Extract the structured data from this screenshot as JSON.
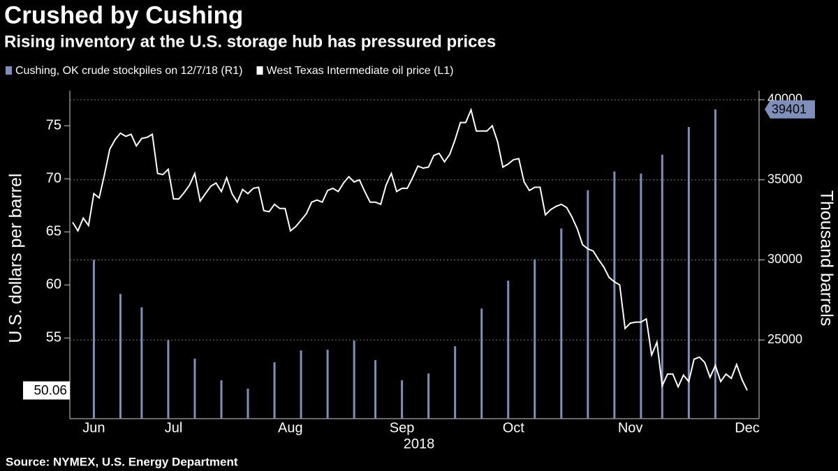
{
  "chart_data": {
    "type": "bar-line",
    "title": "Crushed by Cushing",
    "subtitle": "Rising inventory at the U.S. storage hub has pressured prices",
    "source": "Source: NYMEX, U.S. Energy Department",
    "xlabel": "2018",
    "ylabel": "U.S. dollars per barrel",
    "y2label": "Thousand barrels",
    "categories": [
      null,
      null,
      null,
      null,
      "Jun",
      null,
      null,
      null,
      null,
      null,
      null,
      null,
      null,
      null,
      null,
      null,
      null,
      null,
      null,
      "Jul",
      null,
      null,
      null,
      null,
      null,
      null,
      null,
      null,
      null,
      null,
      null,
      null,
      null,
      null,
      null,
      null,
      null,
      null,
      null,
      null,
      null,
      "Aug",
      null,
      null,
      null,
      null,
      null,
      null,
      null,
      null,
      null,
      null,
      null,
      null,
      null,
      null,
      null,
      null,
      null,
      null,
      null,
      null,
      "Sep",
      null,
      null,
      null,
      null,
      null,
      null,
      null,
      null,
      null,
      null,
      null,
      null,
      null,
      null,
      null,
      null,
      null,
      null,
      null,
      null,
      "Oct",
      null,
      null,
      null,
      null,
      null,
      null,
      null,
      null,
      null,
      null,
      null,
      null,
      null,
      null,
      null,
      null,
      null,
      null,
      null,
      null,
      null,
      "Nov",
      null,
      null,
      null,
      null,
      null,
      null,
      null,
      null,
      null,
      null,
      null,
      null,
      null,
      null,
      null,
      null,
      null,
      null,
      null,
      null,
      null,
      "Dec"
    ],
    "series": [
      {
        "name": "Cushing, OK crude stockpiles on 12/7/18 (R1)",
        "color": "#7f8fba",
        "kind": "bar",
        "axis": "y2",
        "values": [
          null,
          null,
          null,
          null,
          30000,
          null,
          null,
          null,
          null,
          27870,
          null,
          null,
          null,
          27040,
          null,
          null,
          null,
          null,
          25000,
          null,
          null,
          null,
          null,
          23830,
          null,
          null,
          null,
          null,
          22480,
          null,
          null,
          null,
          null,
          21960,
          null,
          null,
          null,
          null,
          23610,
          null,
          null,
          null,
          null,
          24350,
          null,
          null,
          null,
          null,
          24390,
          null,
          null,
          null,
          null,
          24960,
          null,
          null,
          null,
          23740,
          null,
          null,
          null,
          null,
          22480,
          null,
          null,
          null,
          null,
          22910,
          null,
          null,
          null,
          null,
          24610,
          null,
          null,
          null,
          null,
          26960,
          null,
          null,
          null,
          null,
          28700,
          null,
          null,
          null,
          null,
          30040,
          null,
          null,
          null,
          null,
          31960,
          null,
          null,
          null,
          null,
          34350,
          null,
          null,
          null,
          null,
          35520,
          null,
          null,
          null,
          null,
          35390,
          null,
          null,
          null,
          36570,
          null,
          null,
          null,
          null,
          38300,
          null,
          null,
          null,
          null,
          39401,
          null,
          null,
          null,
          null,
          null,
          null
        ]
      },
      {
        "name": "West Texas Intermediate oil price (L1)",
        "color": "#ffffff",
        "kind": "line",
        "axis": "y",
        "values": [
          65.9,
          65.1,
          66.3,
          65.6,
          68.6,
          68.2,
          70.4,
          72.8,
          73.7,
          74.3,
          74.0,
          74.2,
          73.1,
          73.8,
          73.9,
          74.2,
          70.5,
          70.4,
          70.9,
          68.1,
          68.1,
          68.7,
          69.4,
          70.5,
          67.9,
          68.6,
          69.3,
          69.6,
          68.8,
          70.1,
          68.6,
          67.8,
          69.0,
          68.6,
          69.1,
          69.2,
          67.0,
          66.9,
          67.6,
          67.2,
          67.2,
          65.1,
          65.5,
          66.1,
          66.7,
          67.8,
          68.0,
          67.8,
          68.9,
          69.1,
          68.8,
          69.6,
          70.2,
          69.7,
          69.9,
          68.8,
          67.8,
          67.8,
          67.6,
          69.4,
          70.5,
          68.8,
          69.1,
          69.1,
          70.1,
          71.2,
          71.0,
          71.1,
          72.2,
          72.4,
          71.6,
          72.3,
          73.7,
          75.3,
          75.3,
          76.5,
          74.5,
          74.5,
          74.5,
          75.0,
          73.5,
          71.1,
          71.4,
          71.8,
          71.9,
          69.7,
          68.9,
          69.2,
          69.2,
          66.6,
          67.1,
          67.4,
          67.6,
          67.3,
          66.4,
          65.3,
          63.8,
          63.4,
          63.2,
          62.4,
          61.7,
          60.7,
          60.3,
          60.0,
          55.9,
          56.4,
          56.5,
          56.5,
          56.8,
          53.4,
          54.6,
          50.5,
          51.6,
          51.6,
          50.4,
          51.5,
          50.9,
          53.0,
          53.2,
          52.7,
          51.3,
          52.4,
          50.9,
          51.6,
          51.2,
          52.5,
          51.1,
          50.06
        ]
      }
    ],
    "ylim": [
      47.4,
      78.3
    ],
    "yticks": [
      55,
      60,
      65,
      70,
      75
    ],
    "y2lim": [
      20087,
      40565
    ],
    "y2ticks": [
      25000,
      30000,
      35000,
      40000
    ],
    "grid": true,
    "legend": "top-left"
  }
}
